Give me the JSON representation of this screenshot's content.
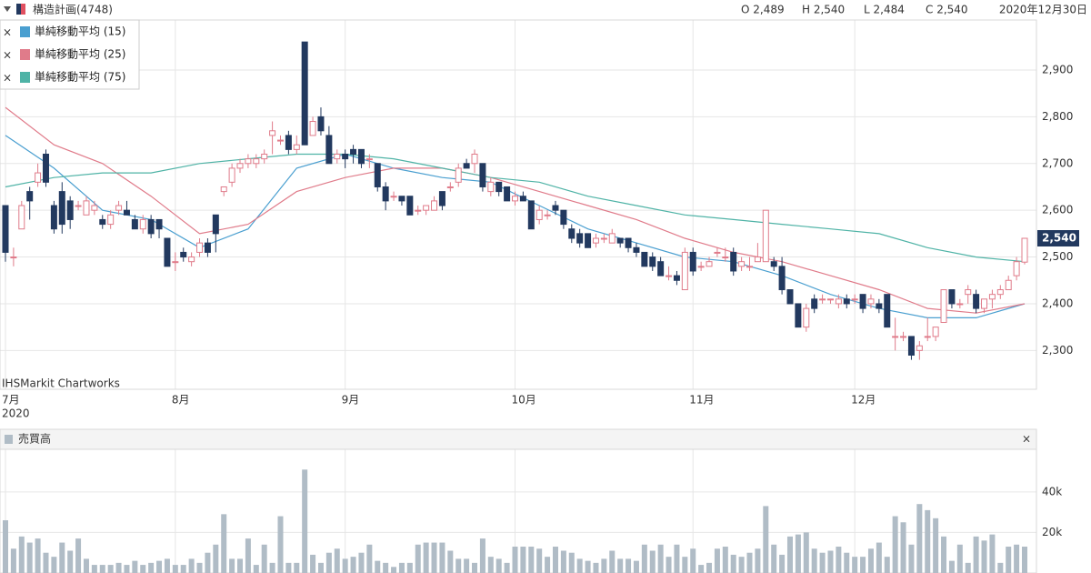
{
  "header": {
    "title": "構造計画(4748)",
    "open": "O 2,489",
    "high": "H 2,540",
    "low": "L 2,484",
    "close": "C 2,540",
    "date": "2020年12月30日"
  },
  "chart_data": {
    "type": "candlestick",
    "watermark": "IHSMarkit Chartworks",
    "up_color": "#e07b8a",
    "down_color": "#22395f",
    "candles": [
      [
        2610,
        2610,
        2490,
        2510
      ],
      [
        2500,
        2520,
        2480,
        2500
      ],
      [
        2560,
        2620,
        2560,
        2610
      ],
      [
        2640,
        2650,
        2580,
        2620
      ],
      [
        2660,
        2700,
        2650,
        2680
      ],
      [
        2720,
        2730,
        2650,
        2660
      ],
      [
        2610,
        2620,
        2550,
        2560
      ],
      [
        2640,
        2660,
        2550,
        2570
      ],
      [
        2620,
        2630,
        2560,
        2580
      ],
      [
        2610,
        2620,
        2600,
        2610
      ],
      [
        2590,
        2630,
        2590,
        2620
      ],
      [
        2600,
        2620,
        2590,
        2610
      ],
      [
        2580,
        2590,
        2560,
        2570
      ],
      [
        2570,
        2600,
        2560,
        2590
      ],
      [
        2600,
        2620,
        2590,
        2610
      ],
      [
        2600,
        2620,
        2590,
        2590
      ],
      [
        2580,
        2590,
        2560,
        2560
      ],
      [
        2560,
        2590,
        2550,
        2580
      ],
      [
        2580,
        2590,
        2540,
        2550
      ],
      [
        2580,
        2580,
        2540,
        2560
      ],
      [
        2540,
        2540,
        2480,
        2480
      ],
      [
        2490,
        2510,
        2470,
        2490
      ],
      [
        2510,
        2520,
        2490,
        2500
      ],
      [
        2490,
        2510,
        2480,
        2500
      ],
      [
        2510,
        2540,
        2500,
        2530
      ],
      [
        2530,
        2540,
        2500,
        2510
      ],
      [
        2590,
        2590,
        2510,
        2550
      ],
      [
        2640,
        2650,
        2630,
        2650
      ],
      [
        2660,
        2700,
        2650,
        2690
      ],
      [
        2690,
        2710,
        2680,
        2700
      ],
      [
        2700,
        2720,
        2690,
        2710
      ],
      [
        2700,
        2720,
        2690,
        2710
      ],
      [
        2710,
        2730,
        2700,
        2720
      ],
      [
        2760,
        2790,
        2720,
        2770
      ],
      [
        2750,
        2760,
        2740,
        2750
      ],
      [
        2760,
        2770,
        2720,
        2730
      ],
      [
        2730,
        2760,
        2720,
        2740
      ],
      [
        2960,
        2960,
        2740,
        2740
      ],
      [
        2760,
        2800,
        2760,
        2790
      ],
      [
        2800,
        2820,
        2760,
        2770
      ],
      [
        2760,
        2780,
        2700,
        2700
      ],
      [
        2710,
        2730,
        2700,
        2720
      ],
      [
        2720,
        2730,
        2690,
        2710
      ],
      [
        2730,
        2740,
        2700,
        2720
      ],
      [
        2730,
        2730,
        2690,
        2700
      ],
      [
        2710,
        2720,
        2690,
        2710
      ],
      [
        2700,
        2700,
        2640,
        2650
      ],
      [
        2650,
        2660,
        2600,
        2620
      ],
      [
        2630,
        2640,
        2620,
        2630
      ],
      [
        2630,
        2630,
        2610,
        2620
      ],
      [
        2630,
        2630,
        2590,
        2590
      ],
      [
        2600,
        2610,
        2590,
        2600
      ],
      [
        2600,
        2610,
        2590,
        2610
      ],
      [
        2600,
        2630,
        2600,
        2620
      ],
      [
        2640,
        2640,
        2600,
        2610
      ],
      [
        2650,
        2660,
        2640,
        2650
      ],
      [
        2660,
        2700,
        2650,
        2690
      ],
      [
        2700,
        2710,
        2690,
        2690
      ],
      [
        2700,
        2730,
        2680,
        2720
      ],
      [
        2700,
        2700,
        2640,
        2650
      ],
      [
        2640,
        2670,
        2630,
        2660
      ],
      [
        2660,
        2660,
        2630,
        2640
      ],
      [
        2650,
        2650,
        2620,
        2620
      ],
      [
        2620,
        2640,
        2610,
        2630
      ],
      [
        2630,
        2640,
        2620,
        2620
      ],
      [
        2620,
        2620,
        2560,
        2560
      ],
      [
        2580,
        2610,
        2570,
        2600
      ],
      [
        2590,
        2600,
        2580,
        2590
      ],
      [
        2610,
        2620,
        2590,
        2600
      ],
      [
        2600,
        2600,
        2560,
        2570
      ],
      [
        2560,
        2570,
        2530,
        2540
      ],
      [
        2550,
        2560,
        2520,
        2530
      ],
      [
        2550,
        2550,
        2520,
        2520
      ],
      [
        2530,
        2550,
        2520,
        2540
      ],
      [
        2540,
        2550,
        2530,
        2540
      ],
      [
        2530,
        2560,
        2530,
        2550
      ],
      [
        2540,
        2540,
        2520,
        2530
      ],
      [
        2540,
        2540,
        2510,
        2520
      ],
      [
        2520,
        2530,
        2500,
        2510
      ],
      [
        2510,
        2510,
        2480,
        2480
      ],
      [
        2500,
        2510,
        2470,
        2480
      ],
      [
        2490,
        2500,
        2460,
        2460
      ],
      [
        2460,
        2480,
        2450,
        2460
      ],
      [
        2460,
        2470,
        2440,
        2450
      ],
      [
        2430,
        2520,
        2430,
        2510
      ],
      [
        2510,
        2520,
        2460,
        2470
      ],
      [
        2480,
        2490,
        2470,
        2480
      ],
      [
        2480,
        2500,
        2480,
        2490
      ],
      [
        2510,
        2520,
        2500,
        2510
      ],
      [
        2500,
        2520,
        2490,
        2500
      ],
      [
        2510,
        2520,
        2460,
        2470
      ],
      [
        2480,
        2500,
        2470,
        2490
      ],
      [
        2480,
        2500,
        2470,
        2480
      ],
      [
        2490,
        2530,
        2490,
        2500
      ],
      [
        2490,
        2600,
        2490,
        2600
      ],
      [
        2490,
        2500,
        2470,
        2480
      ],
      [
        2480,
        2500,
        2420,
        2430
      ],
      [
        2430,
        2430,
        2400,
        2400
      ],
      [
        2400,
        2400,
        2350,
        2350
      ],
      [
        2350,
        2400,
        2340,
        2390
      ],
      [
        2410,
        2420,
        2380,
        2390
      ],
      [
        2410,
        2420,
        2400,
        2410
      ],
      [
        2410,
        2410,
        2400,
        2410
      ],
      [
        2400,
        2420,
        2390,
        2410
      ],
      [
        2410,
        2420,
        2390,
        2400
      ],
      [
        2410,
        2420,
        2400,
        2410
      ],
      [
        2420,
        2420,
        2380,
        2390
      ],
      [
        2400,
        2420,
        2390,
        2410
      ],
      [
        2400,
        2410,
        2380,
        2390
      ],
      [
        2420,
        2420,
        2350,
        2350
      ],
      [
        2330,
        2370,
        2300,
        2330
      ],
      [
        2330,
        2340,
        2320,
        2330
      ],
      [
        2330,
        2330,
        2280,
        2290
      ],
      [
        2300,
        2320,
        2280,
        2310
      ],
      [
        2330,
        2370,
        2320,
        2330
      ],
      [
        2330,
        2350,
        2320,
        2350
      ],
      [
        2360,
        2430,
        2360,
        2430
      ],
      [
        2430,
        2430,
        2390,
        2400
      ],
      [
        2400,
        2410,
        2390,
        2400
      ],
      [
        2420,
        2440,
        2400,
        2430
      ],
      [
        2420,
        2430,
        2380,
        2390
      ],
      [
        2390,
        2410,
        2380,
        2410
      ],
      [
        2410,
        2430,
        2390,
        2420
      ],
      [
        2420,
        2440,
        2410,
        2430
      ],
      [
        2430,
        2460,
        2430,
        2450
      ],
      [
        2460,
        2500,
        2450,
        2490
      ],
      [
        2489,
        2540,
        2484,
        2540
      ]
    ],
    "series": [
      {
        "name": "単純移動平均 (15)",
        "color": "#4a9fd0",
        "x": [
          0,
          6,
          12,
          18,
          24,
          30,
          36,
          42,
          48,
          54,
          60,
          66,
          72,
          78,
          84,
          90,
          96,
          102,
          108,
          114,
          120,
          126
        ],
        "values": [
          2760,
          2690,
          2600,
          2580,
          2520,
          2560,
          2690,
          2720,
          2690,
          2670,
          2660,
          2610,
          2560,
          2530,
          2500,
          2490,
          2460,
          2420,
          2390,
          2370,
          2370,
          2400
        ]
      },
      {
        "name": "単純移動平均 (25)",
        "color": "#e07b8a",
        "x": [
          0,
          6,
          12,
          18,
          24,
          30,
          36,
          42,
          48,
          54,
          60,
          66,
          72,
          78,
          84,
          90,
          96,
          102,
          108,
          114,
          120,
          126
        ],
        "values": [
          2820,
          2740,
          2700,
          2630,
          2550,
          2570,
          2640,
          2670,
          2690,
          2690,
          2670,
          2640,
          2610,
          2580,
          2540,
          2510,
          2490,
          2460,
          2430,
          2390,
          2380,
          2400
        ]
      },
      {
        "name": "単純移動平均 (75)",
        "color": "#4fb3a6",
        "x": [
          0,
          6,
          12,
          18,
          24,
          30,
          36,
          42,
          48,
          54,
          60,
          66,
          72,
          78,
          84,
          90,
          96,
          102,
          108,
          114,
          120,
          126
        ],
        "values": [
          2650,
          2670,
          2680,
          2680,
          2700,
          2710,
          2720,
          2720,
          2710,
          2690,
          2670,
          2660,
          2630,
          2610,
          2590,
          2580,
          2570,
          2560,
          2550,
          2520,
          2500,
          2490
        ]
      }
    ],
    "last_price": {
      "value": 2540,
      "label": "2,540"
    },
    "xlim": [
      -0.7,
      127.3
    ],
    "xticks": [
      {
        "value": 0,
        "label": "7月"
      },
      {
        "value": 21,
        "label": "8月"
      },
      {
        "value": 42,
        "label": "9月"
      },
      {
        "value": 63,
        "label": "10月"
      },
      {
        "value": 85,
        "label": "11月"
      },
      {
        "value": 105,
        "label": "12月"
      }
    ],
    "year_label": "2020",
    "ylim": [
      2217,
      3007
    ],
    "yticks": [
      {
        "value": 2300,
        "label": "2,300"
      },
      {
        "value": 2400,
        "label": "2,400"
      },
      {
        "value": 2500,
        "label": "2,500"
      },
      {
        "value": 2600,
        "label": "2,600"
      },
      {
        "value": 2700,
        "label": "2,700"
      },
      {
        "value": 2800,
        "label": "2,800"
      },
      {
        "value": 2900,
        "label": "2,900"
      }
    ],
    "volume": {
      "title": "売買高",
      "color": "#b0bcc6",
      "ylim": [
        0,
        61000
      ],
      "yticks": [
        {
          "value": 20000,
          "label": "20k"
        },
        {
          "value": 40000,
          "label": "40k"
        }
      ],
      "values": [
        26000,
        12000,
        18000,
        15000,
        17000,
        10000,
        8000,
        15000,
        11000,
        17000,
        7000,
        4000,
        4000,
        4000,
        5000,
        4000,
        6000,
        4000,
        5000,
        6000,
        7000,
        4000,
        4000,
        7000,
        5000,
        10000,
        14000,
        29000,
        7000,
        7000,
        17000,
        4000,
        14000,
        5000,
        28000,
        5000,
        5000,
        51000,
        9000,
        5000,
        10000,
        12000,
        7000,
        8000,
        10000,
        14000,
        6000,
        5000,
        3000,
        5000,
        5000,
        14000,
        15000,
        15000,
        15000,
        11000,
        7000,
        7000,
        5000,
        17000,
        8000,
        7000,
        5000,
        13000,
        13000,
        13000,
        12000,
        8000,
        13000,
        11000,
        10000,
        7000,
        6000,
        5000,
        7000,
        11000,
        7000,
        7000,
        6000,
        14000,
        11000,
        14000,
        8000,
        14000,
        8000,
        12000,
        4000,
        5000,
        12000,
        13000,
        9000,
        8000,
        10000,
        12000,
        33000,
        14000,
        9000,
        18000,
        19000,
        20000,
        12000,
        10000,
        11000,
        13000,
        10000,
        8000,
        8000,
        12000,
        15000,
        8000,
        28000,
        25000,
        14000,
        34000,
        31000,
        27000,
        18000,
        6000,
        14000,
        5000,
        18000,
        16000,
        19000,
        5000,
        13000,
        14000,
        13000
      ]
    }
  }
}
